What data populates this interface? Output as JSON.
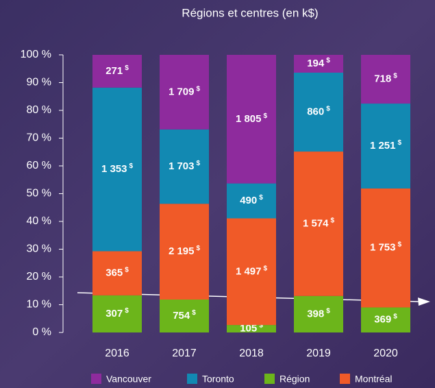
{
  "chart_data": {
    "type": "stacked_bar_percent",
    "title": "Régions et centres (en k$)",
    "categories": [
      "2016",
      "2017",
      "2018",
      "2019",
      "2020"
    ],
    "value_suffix": "$",
    "series": [
      {
        "name": "Région",
        "color": "#6cb51b",
        "values": [
          307,
          754,
          105,
          398,
          369
        ],
        "value_labels": [
          "307",
          "754",
          "105",
          "398",
          "369"
        ]
      },
      {
        "name": "Montréal",
        "color": "#f05a28",
        "values": [
          365,
          2195,
          1497,
          1574,
          1753
        ],
        "value_labels": [
          "365",
          "2 195",
          "1 497",
          "1 574",
          "1 753"
        ]
      },
      {
        "name": "Toronto",
        "color": "#1289b2",
        "values": [
          1353,
          1703,
          490,
          860,
          1251
        ],
        "value_labels": [
          "1 353",
          "1 703",
          "490",
          "860",
          "1 251"
        ]
      },
      {
        "name": "Vancouver",
        "color": "#8e2b9d",
        "values": [
          271,
          1709,
          1805,
          194,
          718
        ],
        "value_labels": [
          "271",
          "1 709",
          "1 805",
          "194",
          "718"
        ]
      }
    ],
    "legend_order": [
      3,
      2,
      0,
      1
    ],
    "ylim": [
      0,
      100
    ],
    "yticks": [
      {
        "value": 0,
        "label": "0 %"
      },
      {
        "value": 10,
        "label": "10 %"
      },
      {
        "value": 20,
        "label": "20 %"
      },
      {
        "value": 30,
        "label": "30 %"
      },
      {
        "value": 40,
        "label": "40 %"
      },
      {
        "value": 50,
        "label": "50 %"
      },
      {
        "value": 60,
        "label": "60 %"
      },
      {
        "value": 70,
        "label": "70 %"
      },
      {
        "value": 80,
        "label": "80 %"
      },
      {
        "value": 90,
        "label": "90 %"
      },
      {
        "value": 100,
        "label": "100 %"
      }
    ]
  }
}
